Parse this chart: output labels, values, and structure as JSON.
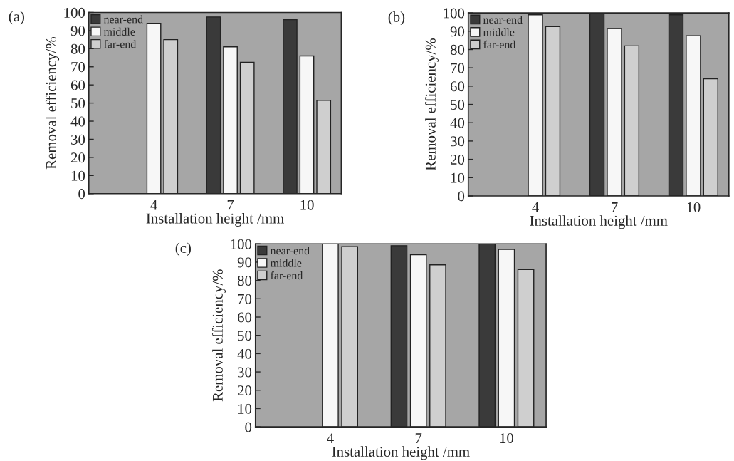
{
  "chart_data": [
    {
      "type": "bar",
      "title": "(a)",
      "xlabel": "Installation height /mm",
      "ylabel": "Removal efficiency/%",
      "categories": [
        "4",
        "7",
        "10"
      ],
      "ylim": [
        0,
        100
      ],
      "yticks": [
        0,
        10,
        20,
        30,
        40,
        50,
        60,
        70,
        80,
        90,
        100
      ],
      "legend": "top left",
      "grid": false,
      "series": [
        {
          "name": "near-end",
          "color": "#3a3a3a",
          "values": [
            null,
            97.5,
            96
          ]
        },
        {
          "name": "middle",
          "color": "#f7f7f7",
          "values": [
            94,
            81,
            76
          ]
        },
        {
          "name": "far-end",
          "color": "#cfcfcf",
          "values": [
            85,
            72.5,
            51.5
          ]
        }
      ]
    },
    {
      "type": "bar",
      "title": "(b)",
      "xlabel": "Installation height /mm",
      "ylabel": "Removal efficiency/%",
      "categories": [
        "4",
        "7",
        "10"
      ],
      "ylim": [
        0,
        100
      ],
      "yticks": [
        0,
        10,
        20,
        30,
        40,
        50,
        60,
        70,
        80,
        90,
        100
      ],
      "legend": "top left",
      "grid": false,
      "series": [
        {
          "name": "near-end",
          "color": "#3a3a3a",
          "values": [
            null,
            100,
            99
          ]
        },
        {
          "name": "middle",
          "color": "#f7f7f7",
          "values": [
            99,
            91.5,
            87.5
          ]
        },
        {
          "name": "far-end",
          "color": "#cfcfcf",
          "values": [
            92.5,
            82,
            64
          ]
        }
      ]
    },
    {
      "type": "bar",
      "title": "(c)",
      "xlabel": "Installation height /mm",
      "ylabel": "Removal efficiency/%",
      "categories": [
        "4",
        "7",
        "10"
      ],
      "ylim": [
        0,
        100
      ],
      "yticks": [
        0,
        10,
        20,
        30,
        40,
        50,
        60,
        70,
        80,
        90,
        100
      ],
      "legend": "top left",
      "grid": false,
      "series": [
        {
          "name": "near-end",
          "color": "#3a3a3a",
          "values": [
            null,
            99,
            100
          ]
        },
        {
          "name": "middle",
          "color": "#f7f7f7",
          "values": [
            100,
            94,
            97
          ]
        },
        {
          "name": "far-end",
          "color": "#cfcfcf",
          "values": [
            98.5,
            88.5,
            86
          ]
        }
      ]
    }
  ]
}
